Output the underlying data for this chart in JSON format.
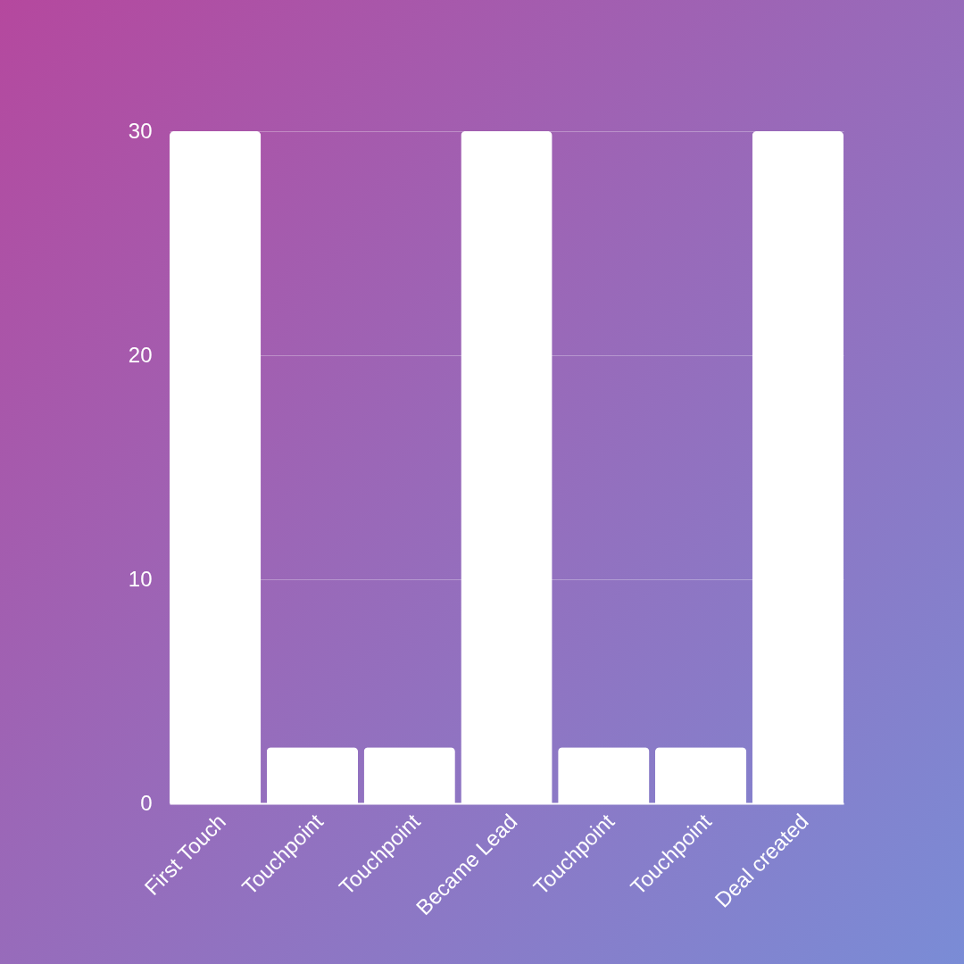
{
  "chart_data": {
    "type": "bar",
    "categories": [
      "First Touch",
      "Touchpoint",
      "Touchpoint",
      "Became Lead",
      "Touchpoint",
      "Touchpoint",
      "Deal created"
    ],
    "values": [
      30,
      2.5,
      2.5,
      30,
      2.5,
      2.5,
      30
    ],
    "color": "#ffffff",
    "ylim": [
      0,
      30
    ],
    "yticks": [
      0,
      10,
      20,
      30
    ],
    "grid": "y"
  }
}
